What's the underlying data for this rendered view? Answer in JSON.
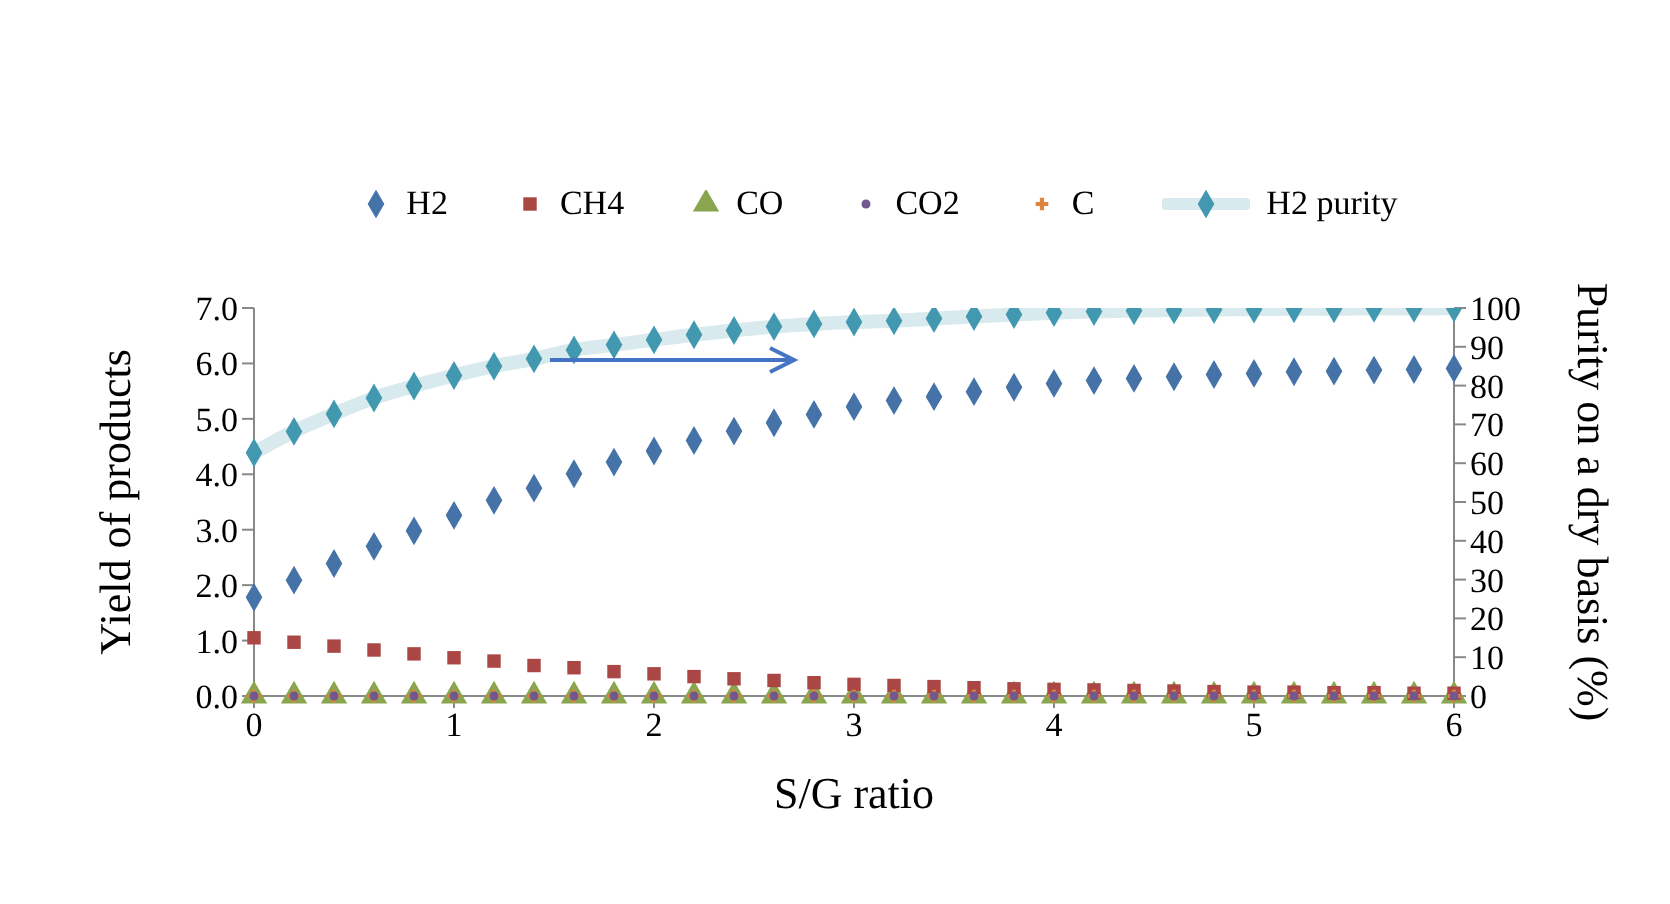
{
  "chart_data": {
    "type": "scatter",
    "xlabel": "S/G ratio",
    "ylabel": "Yield of products",
    "y2label": "Purity on a dry basis (%)",
    "x": [
      0,
      0.2,
      0.4,
      0.6,
      0.8,
      1,
      1.2,
      1.4,
      1.6,
      1.8,
      2,
      2.2,
      2.4,
      2.6,
      2.8,
      3,
      3.2,
      3.4,
      3.6,
      3.8,
      4,
      4.2,
      4.4,
      4.6,
      4.8,
      5,
      5.2,
      5.4,
      5.6,
      5.8,
      6
    ],
    "xlim": [
      0,
      6
    ],
    "xticks": [
      0,
      1,
      2,
      3,
      4,
      5,
      6
    ],
    "ylim": [
      0,
      7
    ],
    "yticks": [
      {
        "value": 0,
        "label": "0.0"
      },
      {
        "value": 1,
        "label": "1.0"
      },
      {
        "value": 2,
        "label": "2.0"
      },
      {
        "value": 3,
        "label": "3.0"
      },
      {
        "value": 4,
        "label": "4.0"
      },
      {
        "value": 5,
        "label": "5.0"
      },
      {
        "value": 6,
        "label": "6.0"
      },
      {
        "value": 7,
        "label": "7.0"
      }
    ],
    "y2lim": [
      0,
      100
    ],
    "y2ticks": [
      0,
      10,
      20,
      30,
      40,
      50,
      60,
      70,
      80,
      90,
      100
    ],
    "legend": "top",
    "grid": false,
    "series": [
      {
        "name": "H2",
        "color": "#4572a7",
        "marker": "diamond",
        "values": [
          1.78,
          2.09,
          2.39,
          2.7,
          2.98,
          3.26,
          3.53,
          3.75,
          4.01,
          4.22,
          4.42,
          4.61,
          4.78,
          4.93,
          5.08,
          5.22,
          5.33,
          5.4,
          5.49,
          5.57,
          5.64,
          5.69,
          5.73,
          5.76,
          5.8,
          5.82,
          5.85,
          5.86,
          5.88,
          5.89,
          5.91
        ]
      },
      {
        "name": "CH4",
        "color": "#aa4643",
        "marker": "square",
        "values": [
          1.05,
          0.97,
          0.9,
          0.83,
          0.76,
          0.69,
          0.63,
          0.55,
          0.51,
          0.44,
          0.4,
          0.35,
          0.31,
          0.28,
          0.24,
          0.21,
          0.19,
          0.17,
          0.15,
          0.13,
          0.12,
          0.11,
          0.1,
          0.09,
          0.08,
          0.07,
          0.07,
          0.06,
          0.06,
          0.05,
          0.05
        ]
      },
      {
        "name": "CO",
        "color": "#89a54e",
        "marker": "triangle",
        "values": [
          0,
          0,
          0,
          0,
          0,
          0,
          0,
          0,
          0,
          0,
          0,
          0,
          0,
          0,
          0,
          0,
          0,
          0,
          0,
          0,
          0,
          0,
          0,
          0,
          0,
          0,
          0,
          0,
          0,
          0,
          0
        ]
      },
      {
        "name": "CO2",
        "color": "#71588f",
        "marker": "circle",
        "values": [
          0,
          0,
          0,
          0,
          0,
          0,
          0,
          0,
          0,
          0,
          0,
          0,
          0,
          0,
          0,
          0,
          0,
          0,
          0,
          0,
          0,
          0,
          0,
          0,
          0,
          0,
          0,
          0,
          0,
          0,
          0
        ]
      },
      {
        "name": "C",
        "color": "#db843d",
        "marker": "cross",
        "values": [
          0,
          0,
          0,
          0,
          0,
          0,
          0,
          0,
          0,
          0,
          0,
          0,
          0,
          0,
          0,
          0,
          0,
          0,
          0,
          0,
          0,
          0,
          0,
          0,
          0,
          0,
          0,
          0,
          0,
          0,
          0
        ]
      },
      {
        "name": "H2 purity",
        "type": "line",
        "axis": "y2",
        "color": "#4198af",
        "marker": "diamond",
        "values": [
          62.7,
          68.2,
          72.7,
          76.8,
          79.9,
          82.6,
          85,
          86.9,
          89.2,
          90.5,
          91.8,
          93.1,
          94.2,
          95.2,
          95.9,
          96.4,
          96.7,
          97.3,
          97.8,
          98.3,
          98.8,
          99.1,
          99.3,
          99.5,
          99.6,
          99.7,
          99.8,
          99.8,
          99.9,
          99.9,
          100
        ]
      }
    ]
  }
}
